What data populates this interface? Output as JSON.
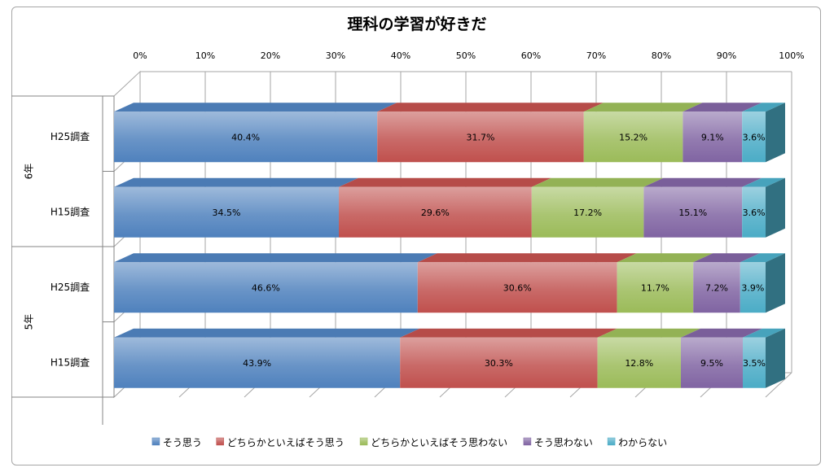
{
  "chart_data": {
    "type": "bar",
    "orientation": "horizontal",
    "stacked": true,
    "percent_stacked": true,
    "title": "理科の学習が好きだ",
    "x_ticks": [
      "0%",
      "10%",
      "20%",
      "30%",
      "40%",
      "50%",
      "60%",
      "70%",
      "80%",
      "90%",
      "100%"
    ],
    "xlim": [
      0,
      100
    ],
    "grid": true,
    "legend_position": "bottom",
    "groups": [
      {
        "label": "6年",
        "categories": [
          "H25調査",
          "H15調査"
        ]
      },
      {
        "label": "5年",
        "categories": [
          "H25調査",
          "H15調査"
        ]
      }
    ],
    "rows": [
      {
        "group": "6年",
        "category": "H25調査",
        "values": [
          40.4,
          31.7,
          15.2,
          9.1,
          3.6
        ],
        "labels": [
          "40.4%",
          "31.7%",
          "15.2%",
          "9.1%",
          "3.6%"
        ]
      },
      {
        "group": "6年",
        "category": "H15調査",
        "values": [
          34.5,
          29.6,
          17.2,
          15.1,
          3.6
        ],
        "labels": [
          "34.5%",
          "29.6%",
          "17.2%",
          "15.1%",
          "3.6%"
        ]
      },
      {
        "group": "5年",
        "category": "H25調査",
        "values": [
          46.6,
          30.6,
          11.7,
          7.2,
          3.9
        ],
        "labels": [
          "46.6%",
          "30.6%",
          "11.7%",
          "7.2%",
          "3.9%"
        ]
      },
      {
        "group": "5年",
        "category": "H15調査",
        "values": [
          43.9,
          30.3,
          12.8,
          9.5,
          3.5
        ],
        "labels": [
          "43.9%",
          "30.3%",
          "12.8%",
          "9.5%",
          "3.5%"
        ]
      }
    ],
    "series": [
      {
        "name": "そう思う",
        "color": "#4f81bd"
      },
      {
        "name": "どちらかといえばそう思う",
        "color": "#c0504d"
      },
      {
        "name": "どちらかといえばそう思わない",
        "color": "#9bbb59"
      },
      {
        "name": "そう思わない",
        "color": "#8064a2"
      },
      {
        "name": "わからない",
        "color": "#4bacc6"
      }
    ]
  }
}
